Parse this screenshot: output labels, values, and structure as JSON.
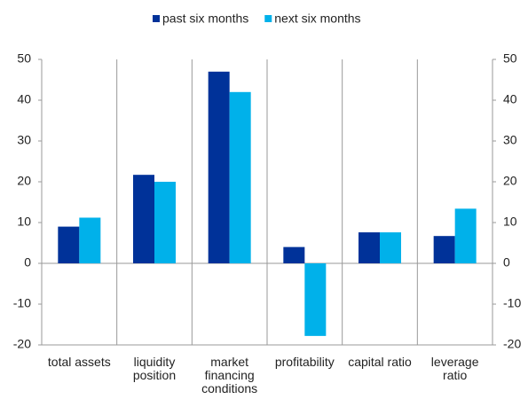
{
  "chart_data": {
    "type": "bar",
    "categories": [
      "total assets",
      "liquidity position",
      "market financing conditions",
      "profitability",
      "capital ratio",
      "leverage ratio"
    ],
    "series": [
      {
        "name": "past six months",
        "color": "#003299",
        "values": [
          9,
          21.7,
          47,
          4,
          7.6,
          6.7
        ]
      },
      {
        "name": "next six months",
        "color": "#00b1ea",
        "values": [
          11.2,
          20,
          42,
          -17.8,
          7.6,
          13.4
        ]
      }
    ],
    "ylim": [
      -20,
      50
    ],
    "yticks": [
      -20,
      -10,
      0,
      10,
      20,
      30,
      40,
      50
    ],
    "y2lim": [
      -20,
      50
    ],
    "y2ticks": [
      -20,
      -10,
      0,
      10,
      20,
      30,
      40,
      50
    ],
    "grid": false,
    "legend": "top"
  }
}
